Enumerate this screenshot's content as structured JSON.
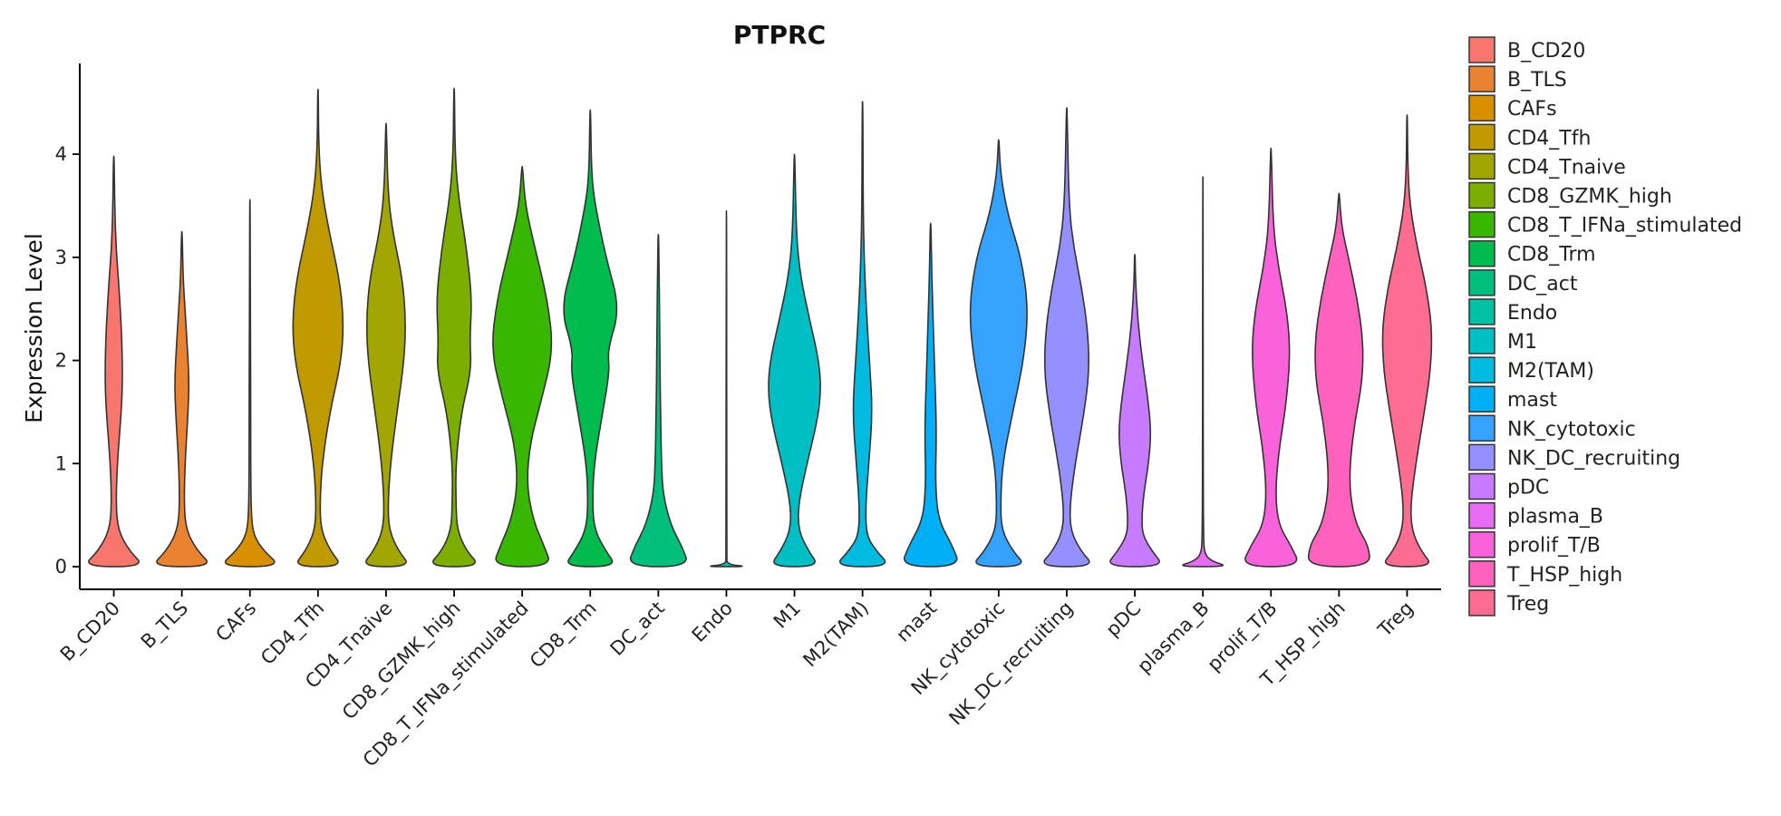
{
  "chart_data": {
    "type": "violin",
    "title": "PTPRC",
    "xlabel": "",
    "ylabel": "Expression Level",
    "ylim": [
      -0.22,
      4.88
    ],
    "yticks": [
      0,
      1,
      2,
      3,
      4
    ],
    "grid": false,
    "legend_position": "right",
    "categories": [
      "B_CD20",
      "B_TLS",
      "CAFs",
      "CD4_Tfh",
      "CD4_Tnaive",
      "CD8_GZMK_high",
      "CD8_T_IFNa_stimulated",
      "CD8_Trm",
      "DC_act",
      "Endo",
      "M1",
      "M2(TAM)",
      "mast",
      "NK_cytotoxic",
      "NK_DC_recruiting",
      "pDC",
      "plasma_B",
      "prolif_T/B",
      "T_HSP_high",
      "Treg"
    ],
    "colors": [
      "#F8766D",
      "#EA8331",
      "#D89000",
      "#C09B00",
      "#A3A500",
      "#7CAE00",
      "#39B600",
      "#00BB4E",
      "#00BF7D",
      "#00C1A3",
      "#00BFC4",
      "#00BAE0",
      "#00B0F6",
      "#35A2FF",
      "#9590FF",
      "#C77CFF",
      "#E76BF3",
      "#FA62DB",
      "#FF62BC",
      "#FF6C91"
    ],
    "series": [
      {
        "name": "B_CD20",
        "max": 3.98,
        "density": [
          [
            0,
            1.0
          ],
          [
            0.15,
            0.5
          ],
          [
            0.35,
            0.14
          ],
          [
            0.6,
            0.07
          ],
          [
            1.0,
            0.11
          ],
          [
            1.5,
            0.24
          ],
          [
            1.8,
            0.28
          ],
          [
            2.2,
            0.26
          ],
          [
            2.7,
            0.17
          ],
          [
            3.1,
            0.07
          ],
          [
            3.5,
            0.03
          ],
          [
            3.98,
            0.01
          ]
        ]
      },
      {
        "name": "B_TLS",
        "max": 3.25,
        "density": [
          [
            0,
            1.0
          ],
          [
            0.15,
            0.5
          ],
          [
            0.35,
            0.14
          ],
          [
            0.6,
            0.07
          ],
          [
            1.0,
            0.1
          ],
          [
            1.5,
            0.2
          ],
          [
            1.8,
            0.23
          ],
          [
            2.1,
            0.18
          ],
          [
            2.5,
            0.1
          ],
          [
            2.8,
            0.04
          ],
          [
            3.25,
            0.01
          ]
        ]
      },
      {
        "name": "CAFs",
        "max": 3.56,
        "density": [
          [
            0,
            1.0
          ],
          [
            0.15,
            0.45
          ],
          [
            0.3,
            0.12
          ],
          [
            0.5,
            0.04
          ],
          [
            1.0,
            0.025
          ],
          [
            1.5,
            0.025
          ],
          [
            2.0,
            0.02
          ],
          [
            2.5,
            0.015
          ],
          [
            3.0,
            0.01
          ],
          [
            3.56,
            0.005
          ]
        ]
      },
      {
        "name": "CD4_Tfh",
        "max": 4.63,
        "density": [
          [
            0,
            0.8
          ],
          [
            0.15,
            0.4
          ],
          [
            0.35,
            0.1
          ],
          [
            0.6,
            0.06
          ],
          [
            1.0,
            0.13
          ],
          [
            1.5,
            0.38
          ],
          [
            2.0,
            0.75
          ],
          [
            2.4,
            0.82
          ],
          [
            2.8,
            0.68
          ],
          [
            3.3,
            0.32
          ],
          [
            3.7,
            0.1
          ],
          [
            4.1,
            0.02
          ],
          [
            4.63,
            0.01
          ]
        ]
      },
      {
        "name": "CD4_Tnaive",
        "max": 4.3,
        "density": [
          [
            0,
            0.8
          ],
          [
            0.15,
            0.4
          ],
          [
            0.35,
            0.1
          ],
          [
            0.6,
            0.06
          ],
          [
            1.0,
            0.14
          ],
          [
            1.5,
            0.35
          ],
          [
            2.0,
            0.58
          ],
          [
            2.4,
            0.63
          ],
          [
            2.8,
            0.52
          ],
          [
            3.2,
            0.24
          ],
          [
            3.6,
            0.06
          ],
          [
            4.3,
            0.01
          ]
        ]
      },
      {
        "name": "CD8_GZMK_high",
        "max": 4.64,
        "density": [
          [
            0,
            0.85
          ],
          [
            0.15,
            0.4
          ],
          [
            0.35,
            0.1
          ],
          [
            0.6,
            0.06
          ],
          [
            1.0,
            0.05
          ],
          [
            1.5,
            0.23
          ],
          [
            1.9,
            0.55
          ],
          [
            2.2,
            0.5
          ],
          [
            2.6,
            0.57
          ],
          [
            3.1,
            0.39
          ],
          [
            3.6,
            0.13
          ],
          [
            4.0,
            0.03
          ],
          [
            4.64,
            0.01
          ]
        ]
      },
      {
        "name": "CD8_T_IFNa_stimulated",
        "max": 3.88,
        "density": [
          [
            0,
            0.95
          ],
          [
            0.2,
            0.7
          ],
          [
            0.45,
            0.35
          ],
          [
            0.8,
            0.14
          ],
          [
            1.2,
            0.25
          ],
          [
            1.6,
            0.6
          ],
          [
            2.1,
            1.0
          ],
          [
            2.6,
            0.8
          ],
          [
            3.1,
            0.4
          ],
          [
            3.5,
            0.1
          ],
          [
            3.88,
            0.01
          ]
        ]
      },
      {
        "name": "CD8_Trm",
        "max": 4.43,
        "density": [
          [
            0,
            0.85
          ],
          [
            0.15,
            0.5
          ],
          [
            0.35,
            0.14
          ],
          [
            0.6,
            0.07
          ],
          [
            1.0,
            0.12
          ],
          [
            1.5,
            0.4
          ],
          [
            1.9,
            0.62
          ],
          [
            2.1,
            0.55
          ],
          [
            2.5,
            0.95
          ],
          [
            3.0,
            0.5
          ],
          [
            3.5,
            0.16
          ],
          [
            3.8,
            0.04
          ],
          [
            4.43,
            0.01
          ]
        ]
      },
      {
        "name": "DC_act",
        "max": 3.22,
        "density": [
          [
            0,
            1.0
          ],
          [
            0.2,
            0.75
          ],
          [
            0.4,
            0.4
          ],
          [
            0.7,
            0.15
          ],
          [
            1.0,
            0.1
          ],
          [
            1.5,
            0.07
          ],
          [
            2.0,
            0.05
          ],
          [
            2.5,
            0.04
          ],
          [
            2.9,
            0.02
          ],
          [
            3.22,
            0.01
          ]
        ]
      },
      {
        "name": "Endo",
        "max": 3.45,
        "density": [
          [
            0,
            0.75
          ],
          [
            0.02,
            0.02
          ],
          [
            0.1,
            0.01
          ],
          [
            3.45,
            0.008
          ]
        ]
      },
      {
        "name": "M1",
        "max": 4.0,
        "density": [
          [
            0,
            0.8
          ],
          [
            0.15,
            0.45
          ],
          [
            0.35,
            0.13
          ],
          [
            0.6,
            0.12
          ],
          [
            1.0,
            0.4
          ],
          [
            1.4,
            0.72
          ],
          [
            1.7,
            0.85
          ],
          [
            2.0,
            0.78
          ],
          [
            2.4,
            0.48
          ],
          [
            2.8,
            0.2
          ],
          [
            3.2,
            0.06
          ],
          [
            4.0,
            0.01
          ]
        ]
      },
      {
        "name": "M2(TAM)",
        "max": 4.51,
        "density": [
          [
            0,
            0.9
          ],
          [
            0.15,
            0.45
          ],
          [
            0.3,
            0.12
          ],
          [
            0.6,
            0.1
          ],
          [
            1.0,
            0.2
          ],
          [
            1.5,
            0.32
          ],
          [
            2.0,
            0.22
          ],
          [
            2.5,
            0.12
          ],
          [
            3.0,
            0.05
          ],
          [
            3.5,
            0.02
          ],
          [
            4.51,
            0.01
          ]
        ]
      },
      {
        "name": "mast",
        "max": 3.33,
        "density": [
          [
            0,
            0.95
          ],
          [
            0.2,
            0.7
          ],
          [
            0.45,
            0.25
          ],
          [
            0.8,
            0.15
          ],
          [
            1.3,
            0.19
          ],
          [
            1.8,
            0.14
          ],
          [
            2.3,
            0.09
          ],
          [
            2.8,
            0.04
          ],
          [
            3.33,
            0.01
          ]
        ]
      },
      {
        "name": "NK_cytotoxic",
        "max": 4.14,
        "density": [
          [
            0,
            0.9
          ],
          [
            0.15,
            0.45
          ],
          [
            0.35,
            0.1
          ],
          [
            0.6,
            0.06
          ],
          [
            1.0,
            0.12
          ],
          [
            1.5,
            0.45
          ],
          [
            2.0,
            0.8
          ],
          [
            2.5,
            0.95
          ],
          [
            3.0,
            0.72
          ],
          [
            3.4,
            0.3
          ],
          [
            3.8,
            0.06
          ],
          [
            4.14,
            0.01
          ]
        ]
      },
      {
        "name": "NK_DC_recruiting",
        "max": 4.45,
        "density": [
          [
            0,
            0.9
          ],
          [
            0.15,
            0.45
          ],
          [
            0.35,
            0.12
          ],
          [
            0.6,
            0.1
          ],
          [
            1.0,
            0.27
          ],
          [
            1.5,
            0.56
          ],
          [
            1.9,
            0.72
          ],
          [
            2.3,
            0.67
          ],
          [
            2.7,
            0.48
          ],
          [
            3.1,
            0.22
          ],
          [
            3.5,
            0.07
          ],
          [
            4.45,
            0.01
          ]
        ]
      },
      {
        "name": "pDC",
        "max": 3.03,
        "density": [
          [
            0,
            0.95
          ],
          [
            0.15,
            0.55
          ],
          [
            0.3,
            0.26
          ],
          [
            0.45,
            0.22
          ],
          [
            0.7,
            0.28
          ],
          [
            1.0,
            0.44
          ],
          [
            1.3,
            0.52
          ],
          [
            1.6,
            0.43
          ],
          [
            2.0,
            0.24
          ],
          [
            2.4,
            0.09
          ],
          [
            2.8,
            0.02
          ],
          [
            3.03,
            0.01
          ]
        ]
      },
      {
        "name": "plasma_B",
        "max": 3.78,
        "density": [
          [
            0,
            0.85
          ],
          [
            0.05,
            0.3
          ],
          [
            0.12,
            0.05
          ],
          [
            0.3,
            0.02
          ],
          [
            1.0,
            0.01
          ],
          [
            2.0,
            0.008
          ],
          [
            3.78,
            0.005
          ]
        ]
      },
      {
        "name": "prolif_T/B",
        "max": 4.06,
        "density": [
          [
            0,
            0.95
          ],
          [
            0.2,
            0.65
          ],
          [
            0.4,
            0.25
          ],
          [
            0.7,
            0.14
          ],
          [
            1.1,
            0.24
          ],
          [
            1.6,
            0.5
          ],
          [
            2.1,
            0.62
          ],
          [
            2.5,
            0.5
          ],
          [
            2.9,
            0.24
          ],
          [
            3.3,
            0.07
          ],
          [
            4.06,
            0.01
          ]
        ]
      },
      {
        "name": "T_HSP_high",
        "max": 3.62,
        "density": [
          [
            0,
            1.0
          ],
          [
            0.2,
            0.95
          ],
          [
            0.4,
            0.55
          ],
          [
            0.7,
            0.35
          ],
          [
            1.0,
            0.35
          ],
          [
            1.4,
            0.5
          ],
          [
            1.8,
            0.75
          ],
          [
            2.2,
            0.77
          ],
          [
            2.6,
            0.58
          ],
          [
            3.0,
            0.3
          ],
          [
            3.3,
            0.08
          ],
          [
            3.62,
            0.01
          ]
        ]
      },
      {
        "name": "Treg",
        "max": 4.38,
        "density": [
          [
            0,
            0.85
          ],
          [
            0.15,
            0.45
          ],
          [
            0.35,
            0.15
          ],
          [
            0.6,
            0.11
          ],
          [
            1.0,
            0.28
          ],
          [
            1.5,
            0.55
          ],
          [
            1.9,
            0.75
          ],
          [
            2.3,
            0.8
          ],
          [
            2.7,
            0.62
          ],
          [
            3.1,
            0.32
          ],
          [
            3.5,
            0.09
          ],
          [
            3.9,
            0.02
          ],
          [
            4.38,
            0.01
          ]
        ]
      }
    ]
  }
}
